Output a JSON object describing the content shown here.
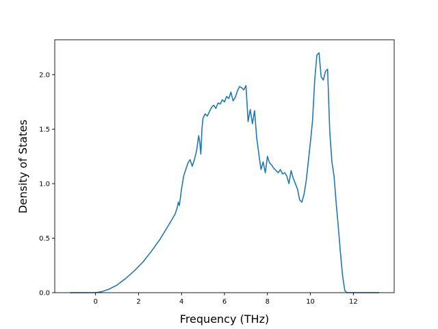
{
  "chart_data": {
    "type": "line",
    "title": "",
    "xlabel": "Frequency (THz)",
    "ylabel": "Density of States",
    "xlim": [
      -1.9,
      13.9
    ],
    "ylim": [
      0.0,
      2.32
    ],
    "xticks": [
      0,
      2,
      4,
      6,
      8,
      10,
      12
    ],
    "xtick_labels": [
      "0",
      "2",
      "4",
      "6",
      "8",
      "10",
      "12"
    ],
    "yticks": [
      0.0,
      0.5,
      1.0,
      1.5,
      2.0
    ],
    "ytick_labels": [
      "0.0",
      "0.5",
      "1.0",
      "1.5",
      "2.0"
    ],
    "grid": false,
    "legend": "none",
    "colors": {
      "line": "#1f77b4"
    },
    "series": [
      {
        "x": [
          -1.2,
          -0.6,
          0.0,
          0.3,
          0.6,
          1.0,
          1.4,
          1.8,
          2.2,
          2.6,
          3.0,
          3.4,
          3.7,
          3.8,
          3.85,
          3.9,
          4.0,
          4.1,
          4.2,
          4.3,
          4.4,
          4.5,
          4.6,
          4.7,
          4.8,
          4.85,
          4.9,
          4.95,
          5.0,
          5.1,
          5.2,
          5.3,
          5.4,
          5.5,
          5.6,
          5.7,
          5.8,
          5.9,
          6.0,
          6.1,
          6.2,
          6.3,
          6.4,
          6.5,
          6.6,
          6.7,
          6.8,
          6.9,
          7.0,
          7.1,
          7.2,
          7.3,
          7.4,
          7.5,
          7.6,
          7.7,
          7.8,
          7.9,
          8.0,
          8.1,
          8.2,
          8.3,
          8.4,
          8.5,
          8.6,
          8.7,
          8.8,
          8.9,
          9.0,
          9.1,
          9.2,
          9.3,
          9.4,
          9.5,
          9.6,
          9.7,
          9.8,
          9.9,
          10.0,
          10.1,
          10.2,
          10.3,
          10.4,
          10.5,
          10.6,
          10.7,
          10.8,
          10.9,
          11.0,
          11.1,
          11.2,
          11.3,
          11.4,
          11.5,
          11.6,
          11.7,
          11.8,
          11.9,
          12.0,
          12.1,
          12.3,
          12.6,
          13.2
        ],
        "y": [
          0.0,
          0.0,
          0.0,
          0.01,
          0.03,
          0.07,
          0.13,
          0.2,
          0.28,
          0.38,
          0.49,
          0.62,
          0.72,
          0.78,
          0.83,
          0.8,
          0.95,
          1.07,
          1.13,
          1.19,
          1.22,
          1.16,
          1.22,
          1.3,
          1.44,
          1.38,
          1.27,
          1.5,
          1.6,
          1.64,
          1.62,
          1.66,
          1.7,
          1.72,
          1.69,
          1.74,
          1.73,
          1.77,
          1.75,
          1.8,
          1.78,
          1.84,
          1.76,
          1.79,
          1.85,
          1.89,
          1.88,
          1.86,
          1.9,
          1.57,
          1.68,
          1.55,
          1.67,
          1.42,
          1.27,
          1.13,
          1.2,
          1.1,
          1.25,
          1.19,
          1.17,
          1.14,
          1.12,
          1.1,
          1.13,
          1.09,
          1.1,
          1.07,
          1.0,
          1.12,
          1.05,
          1.0,
          0.95,
          0.85,
          0.83,
          0.9,
          1.02,
          1.2,
          1.38,
          1.58,
          1.95,
          2.18,
          2.2,
          1.98,
          1.95,
          2.03,
          2.05,
          1.48,
          1.2,
          1.07,
          0.82,
          0.6,
          0.36,
          0.15,
          0.02,
          0.0,
          0.0,
          0.0,
          0.0,
          0.0,
          0.0,
          0.0,
          0.0
        ]
      }
    ]
  }
}
